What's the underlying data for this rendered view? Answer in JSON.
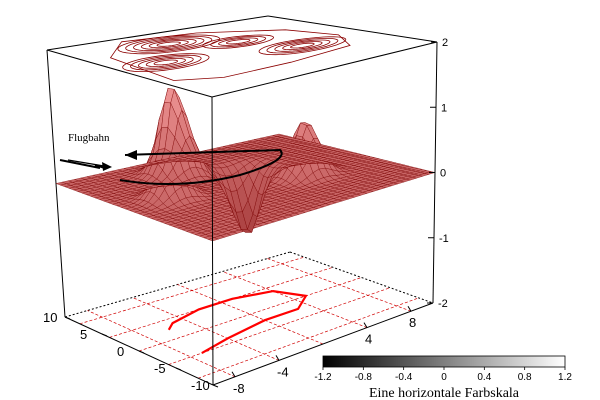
{
  "chart_data": {
    "type": "surface3d",
    "z_axis": {
      "ticks": [
        "2",
        "1",
        "0",
        "-1",
        "-2"
      ],
      "range": [
        -2,
        2
      ]
    },
    "y_axis": {
      "ticks": [
        "10",
        "5",
        "0",
        "-5",
        "-10"
      ],
      "range": [
        -10,
        10
      ]
    },
    "x_axis": {
      "ticks": [
        "8",
        "4",
        "-4",
        "-8"
      ],
      "range": [
        -10,
        10
      ]
    },
    "surface_color": "#b02020",
    "mesh_color": "#7a0000",
    "peaks": [
      {
        "x": -2,
        "y": 6,
        "height": 1.6
      },
      {
        "x": 4,
        "y": -2,
        "height": 1.0
      },
      {
        "x": -6,
        "y": 1,
        "height": 0.8
      },
      {
        "x": 2,
        "y": 3,
        "height": -1.2
      }
    ],
    "annotation": {
      "label": "Flugbahn"
    },
    "colorbar": {
      "ticks": [
        "-1.2",
        "-0.8",
        "-0.4",
        "0",
        "0.4",
        "0.8",
        "1.2"
      ],
      "range": [
        -1.2,
        1.2
      ],
      "title": "Eine horizontale Farbskala",
      "orientation": "horizontal",
      "colormap": "grayscale"
    },
    "grid": true,
    "top_projection": "contours",
    "bottom_projection": "trajectory"
  }
}
